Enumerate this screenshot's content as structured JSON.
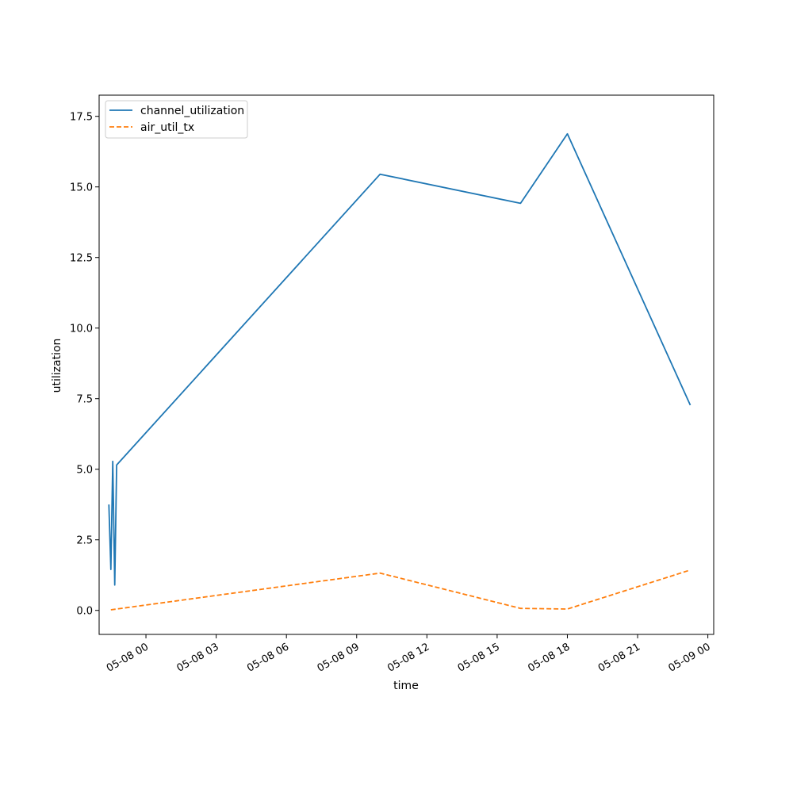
{
  "chart_data": {
    "type": "line",
    "title": "",
    "xlabel": "time",
    "ylabel": "utilization",
    "xlim": [
      "2025-05-07 22:00",
      "2025-05-09 00:15"
    ],
    "ylim": [
      -0.85,
      18.25
    ],
    "x_ticks": [
      "05-08 00",
      "05-08 03",
      "05-08 06",
      "05-08 09",
      "05-08 12",
      "05-08 15",
      "05-08 18",
      "05-08 21",
      "05-09 00"
    ],
    "y_ticks": [
      "0.0",
      "2.5",
      "5.0",
      "7.5",
      "10.0",
      "12.5",
      "15.0",
      "17.5"
    ],
    "legend_position": "top-left",
    "grid": false,
    "series": [
      {
        "name": "channel_utilization",
        "color": "#1f77b4",
        "style": "solid",
        "points": [
          {
            "x": "2025-05-07 22:25",
            "y": 3.75
          },
          {
            "x": "2025-05-07 22:30",
            "y": 1.45
          },
          {
            "x": "2025-05-07 22:35",
            "y": 5.28
          },
          {
            "x": "2025-05-07 22:40",
            "y": 0.9
          },
          {
            "x": "2025-05-07 22:45",
            "y": 5.15
          },
          {
            "x": "2025-05-08 10:00",
            "y": 15.45
          },
          {
            "x": "2025-05-08 16:00",
            "y": 14.42
          },
          {
            "x": "2025-05-08 18:00",
            "y": 16.88
          },
          {
            "x": "2025-05-08 23:15",
            "y": 7.27
          }
        ]
      },
      {
        "name": "air_util_tx",
        "color": "#ff7f0e",
        "style": "dashed",
        "points": [
          {
            "x": "2025-05-07 22:30",
            "y": 0.02
          },
          {
            "x": "2025-05-07 22:45",
            "y": 0.05
          },
          {
            "x": "2025-05-08 10:00",
            "y": 1.32
          },
          {
            "x": "2025-05-08 16:00",
            "y": 0.07
          },
          {
            "x": "2025-05-08 18:00",
            "y": 0.05
          },
          {
            "x": "2025-05-08 23:15",
            "y": 1.43
          }
        ]
      }
    ]
  }
}
